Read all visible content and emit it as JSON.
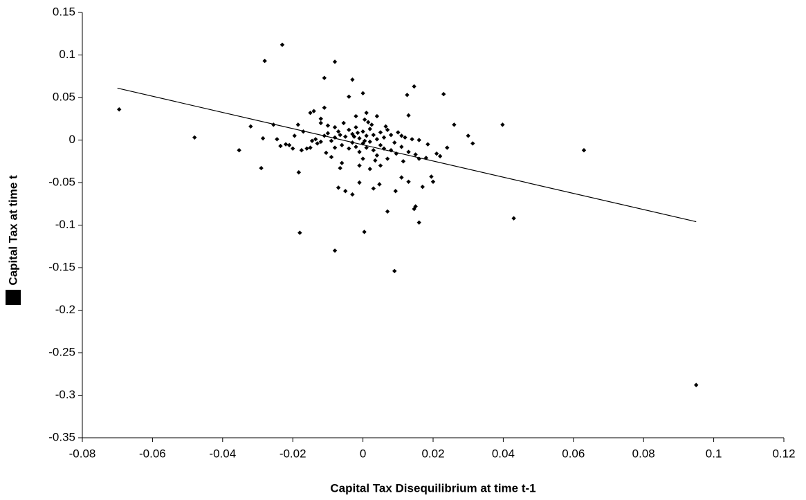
{
  "chart_data": {
    "type": "scatter",
    "x_label": "Capital Tax Disequilibrium at time t-1",
    "y_label": "Capital Tax at time t",
    "color": "#000000",
    "xlim": [
      -0.08,
      0.12
    ],
    "xticks": [
      -0.08,
      -0.06,
      -0.04,
      -0.02,
      0,
      0.02,
      0.04,
      0.06,
      0.08,
      0.1,
      0.12
    ],
    "ylim": [
      -0.35,
      0.15
    ],
    "yticks": [
      0.15,
      0.1,
      0.05,
      0,
      -0.05,
      -0.1,
      -0.15,
      -0.2,
      -0.25,
      -0.3,
      -0.35
    ],
    "x": [
      -0.0695,
      -0.048,
      -0.0353,
      -0.032,
      -0.028,
      -0.023,
      -0.029,
      -0.0285,
      -0.0255,
      -0.0245,
      -0.0235,
      -0.021,
      -0.0183,
      -0.018,
      -0.008,
      -0.008,
      -0.011,
      -0.003,
      0,
      0.0004,
      0.009,
      0.0146,
      0.023,
      0.026,
      0.0398,
      0.043,
      0.063,
      0.095,
      0.03,
      0.0313,
      0.024,
      0.022,
      0.021,
      0.0195,
      0.02,
      0.017,
      0.016,
      0.0146,
      0.015,
      0.0126,
      0.013,
      0.007,
      0.0093,
      0.0047,
      -0.007,
      -0.005,
      -0.003,
      -0.001,
      0.003,
      -0.0065,
      0.011,
      0.013,
      -0.004,
      0.001,
      0.004,
      -0.002,
      0.0005,
      -0.008,
      -0.01,
      -0.014,
      -0.015,
      -0.011,
      -0.012,
      -0.012,
      -0.0185,
      -0.017,
      -0.016,
      -0.015,
      -0.0145,
      -0.0135,
      -0.013,
      -0.012,
      -0.011,
      -0.01,
      -0.009,
      -0.008,
      -0.007,
      -0.006,
      -0.005,
      -0.004,
      -0.004,
      -0.003,
      -0.003,
      -0.002,
      -0.002,
      -0.001,
      -0.001,
      0,
      0,
      0.001,
      0.001,
      0.002,
      0.002,
      0.003,
      0.003,
      0.004,
      0.004,
      0.005,
      0.005,
      0.006,
      0.006,
      0.007,
      0.007,
      0.008,
      0.009,
      0.01,
      0.011,
      0.011,
      0.012,
      0.013,
      0.014,
      0.015,
      0.016,
      0.0115,
      0.0095,
      -0.006,
      -0.009,
      -0.001,
      0.002,
      0.005,
      -0.0195,
      -0.02,
      -0.022,
      -0.008,
      0.008,
      0.0025,
      -0.0055,
      0.0015,
      0.0035,
      0.016,
      0.018,
      -0.0105,
      0,
      -0.0025,
      0.0005,
      -0.0015,
      0.0065,
      -0.0065,
      -0.0175,
      0.0185
    ],
    "values": [
      0.036,
      0.003,
      -0.012,
      0.016,
      0.093,
      0.112,
      -0.033,
      0.002,
      0.018,
      0.001,
      -0.007,
      -0.006,
      -0.038,
      -0.109,
      -0.13,
      0.092,
      0.073,
      0.071,
      0.055,
      -0.108,
      -0.154,
      0.063,
      0.054,
      0.018,
      0.018,
      -0.092,
      -0.012,
      -0.288,
      0.005,
      -0.004,
      -0.009,
      -0.019,
      -0.016,
      -0.043,
      -0.049,
      -0.055,
      -0.097,
      -0.081,
      -0.078,
      0.053,
      0.029,
      -0.084,
      -0.06,
      -0.052,
      -0.056,
      -0.06,
      -0.064,
      -0.05,
      -0.057,
      -0.033,
      -0.044,
      -0.049,
      0.051,
      0.032,
      0.028,
      0.028,
      0.024,
      0.015,
      0.017,
      0.034,
      0.032,
      0.038,
      0.025,
      0.02,
      0.018,
      0.01,
      -0.01,
      -0.009,
      -0.001,
      0.001,
      -0.004,
      -0.002,
      0.005,
      0.008,
      -0.001,
      0.003,
      0.01,
      -0.006,
      0.004,
      0.012,
      -0.01,
      0.007,
      -0.003,
      0.015,
      -0.008,
      0.002,
      -0.014,
      0.01,
      -0.004,
      0.005,
      -0.009,
      0.013,
      -0.002,
      0.006,
      -0.012,
      0.001,
      -0.018,
      0.009,
      -0.006,
      0.003,
      -0.01,
      0.012,
      -0.022,
      0.006,
      -0.003,
      0.009,
      0.005,
      -0.008,
      0.003,
      -0.014,
      0.001,
      -0.017,
      0,
      -0.025,
      -0.016,
      -0.027,
      -0.02,
      -0.03,
      -0.034,
      -0.03,
      0.005,
      -0.01,
      -0.005,
      -0.009,
      -0.012,
      0.018,
      0.02,
      0.021,
      -0.024,
      -0.022,
      -0.021,
      -0.015,
      -0.022,
      0.004,
      -0.001,
      0.0085,
      0.016,
      0.006,
      -0.012,
      -0.005
    ],
    "trendline": {
      "x": [
        -0.07,
        0.095
      ],
      "values": [
        0.061,
        -0.096
      ]
    }
  }
}
